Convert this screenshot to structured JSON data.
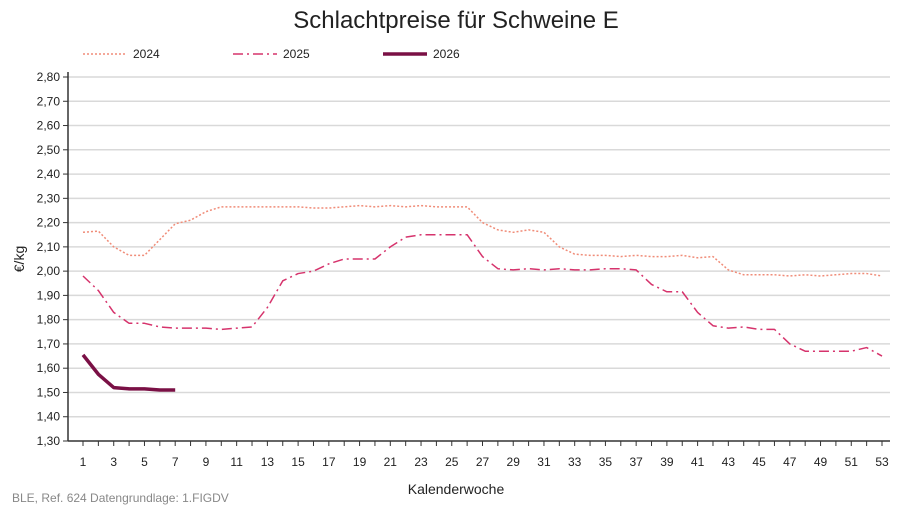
{
  "chart_data": {
    "type": "line",
    "title": "Schlachtpreise für Schweine E",
    "xlabel": "Kalenderwoche",
    "ylabel": "€/kg",
    "ylim": [
      1.3,
      2.8
    ],
    "yticks": [
      "1,30",
      "1,40",
      "1,50",
      "1,60",
      "1,70",
      "1,80",
      "1,90",
      "2,00",
      "2,10",
      "2,20",
      "2,30",
      "2,40",
      "2,50",
      "2,60",
      "2,70",
      "2,80"
    ],
    "xticks": [
      "1",
      "3",
      "5",
      "7",
      "9",
      "11",
      "13",
      "15",
      "17",
      "19",
      "21",
      "23",
      "25",
      "27",
      "29",
      "31",
      "33",
      "35",
      "37",
      "39",
      "41",
      "43",
      "45",
      "47",
      "49",
      "51",
      "53"
    ],
    "grid": true,
    "legend": "top-left",
    "source": "BLE, Ref. 624 Datengrundlage: 1.FIGDV",
    "series": [
      {
        "name": "2024",
        "color": "#f08c78",
        "style": "dotted",
        "values": [
          2.16,
          2.165,
          2.1,
          2.065,
          2.065,
          2.13,
          2.195,
          2.21,
          2.245,
          2.265,
          2.265,
          2.265,
          2.265,
          2.265,
          2.265,
          2.26,
          2.26,
          2.265,
          2.27,
          2.265,
          2.27,
          2.265,
          2.27,
          2.265,
          2.265,
          2.265,
          2.2,
          2.17,
          2.16,
          2.17,
          2.16,
          2.1,
          2.07,
          2.065,
          2.065,
          2.06,
          2.065,
          2.06,
          2.06,
          2.065,
          2.055,
          2.06,
          2.005,
          1.985,
          1.985,
          1.985,
          1.98,
          1.985,
          1.98,
          1.985,
          1.99,
          1.99,
          1.98
        ]
      },
      {
        "name": "2025",
        "color": "#d6336c",
        "style": "dashdot",
        "values": [
          1.98,
          1.92,
          1.83,
          1.785,
          1.785,
          1.77,
          1.765,
          1.765,
          1.765,
          1.76,
          1.765,
          1.77,
          1.85,
          1.96,
          1.99,
          2.0,
          2.03,
          2.05,
          2.05,
          2.05,
          2.1,
          2.14,
          2.15,
          2.15,
          2.15,
          2.15,
          2.06,
          2.01,
          2.005,
          2.01,
          2.005,
          2.01,
          2.005,
          2.005,
          2.01,
          2.01,
          2.005,
          1.945,
          1.915,
          1.915,
          1.83,
          1.775,
          1.765,
          1.77,
          1.76,
          1.76,
          1.7,
          1.67,
          1.67,
          1.67,
          1.67,
          1.685,
          1.65
        ]
      },
      {
        "name": "2026",
        "color": "#7a1045",
        "style": "solid",
        "values": [
          1.655,
          1.575,
          1.52,
          1.515,
          1.515,
          1.51,
          1.51
        ]
      }
    ]
  }
}
